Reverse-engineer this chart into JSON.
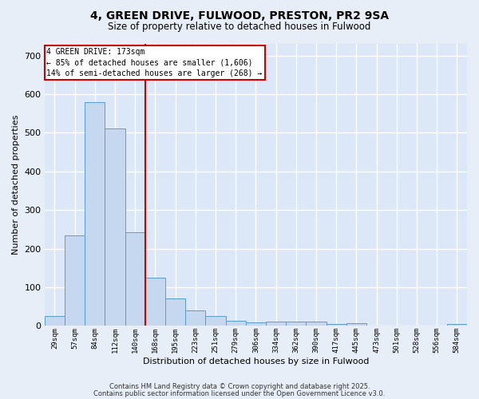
{
  "title": "4, GREEN DRIVE, FULWOOD, PRESTON, PR2 9SA",
  "subtitle": "Size of property relative to detached houses in Fulwood",
  "xlabel": "Distribution of detached houses by size in Fulwood",
  "ylabel": "Number of detached properties",
  "categories": [
    "29sqm",
    "57sqm",
    "84sqm",
    "112sqm",
    "140sqm",
    "168sqm",
    "195sqm",
    "223sqm",
    "251sqm",
    "279sqm",
    "306sqm",
    "334sqm",
    "362sqm",
    "390sqm",
    "417sqm",
    "445sqm",
    "473sqm",
    "501sqm",
    "528sqm",
    "556sqm",
    "584sqm"
  ],
  "values": [
    25,
    234,
    580,
    512,
    242,
    125,
    70,
    40,
    25,
    13,
    8,
    10,
    10,
    10,
    5,
    7,
    0,
    0,
    0,
    0,
    5
  ],
  "bar_color": "#c5d8f0",
  "bar_edge_color": "#5b9bd5",
  "vline_pos": 4.5,
  "vline_color": "#cc0000",
  "annotation_title": "4 GREEN DRIVE: 173sqm",
  "annotation_line1": "← 85% of detached houses are smaller (1,606)",
  "annotation_line2": "14% of semi-detached houses are larger (268) →",
  "annotation_box_color": "#ffffff",
  "annotation_box_edge": "#cc0000",
  "ylim": [
    0,
    730
  ],
  "yticks": [
    0,
    100,
    200,
    300,
    400,
    500,
    600,
    700
  ],
  "background_color": "#dce8f8",
  "grid_color": "#ffffff",
  "fig_bg_color": "#e8eef8",
  "footer1": "Contains HM Land Registry data © Crown copyright and database right 2025.",
  "footer2": "Contains public sector information licensed under the Open Government Licence v3.0."
}
